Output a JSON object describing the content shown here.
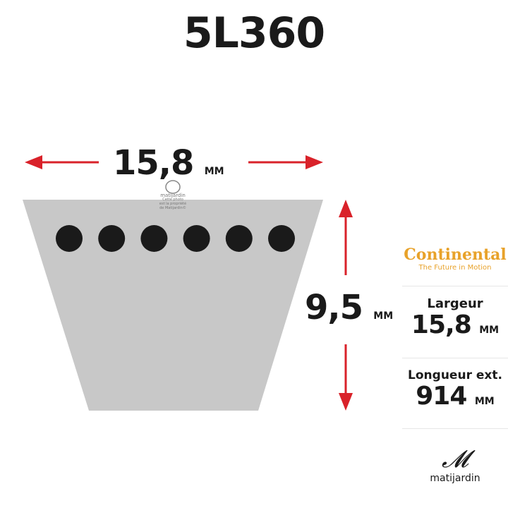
{
  "title": "5L360",
  "diagram": {
    "width_value": "15,8",
    "width_unit": "MM",
    "height_value": "9,5",
    "height_unit": "MM",
    "dot_count": 6,
    "colors": {
      "arrow": "#d9222a",
      "profile": "#c8c8c8",
      "dot": "#1a1a1a"
    },
    "watermark": {
      "brand": "matijardin",
      "line1": "Cette photo",
      "line2": "est la propriété",
      "line3": "de Matijardin©"
    }
  },
  "panel": {
    "brand": "Continental",
    "tagline": "The Future in Motion",
    "brand_color": "#e8a22a",
    "width_label": "Largeur",
    "width_value": "15,8",
    "width_unit": "MM",
    "length_label": "Longueur ext.",
    "length_value": "914",
    "length_unit": "MM"
  },
  "logo": {
    "text": "matijardin"
  }
}
